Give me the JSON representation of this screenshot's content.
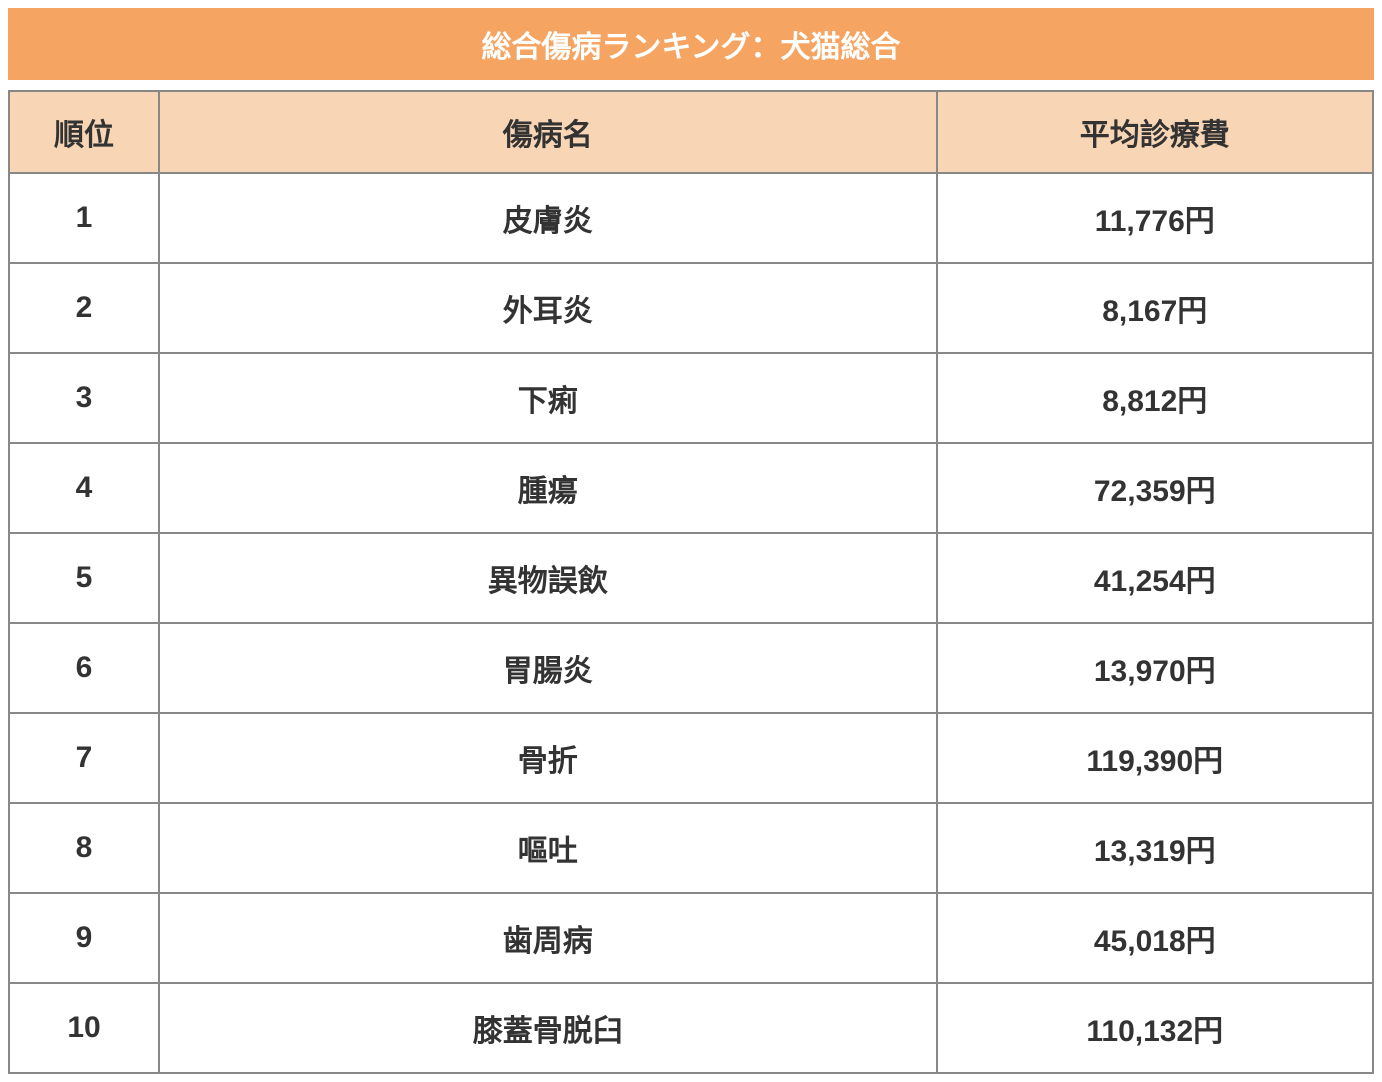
{
  "title": "総合傷病ランキング：犬猫総合",
  "title_bar": {
    "background_color": "#f5a462",
    "text_color": "#ffffff",
    "fontsize": 30
  },
  "table": {
    "type": "table",
    "header_background_color": "#f8d5b5",
    "header_text_color": "#333333",
    "border_color": "#888888",
    "row_background_color": "#ffffff",
    "cell_text_color": "#333333",
    "fontsize": 30,
    "columns": [
      {
        "key": "rank",
        "label": "順位",
        "width_pct": 11
      },
      {
        "key": "name",
        "label": "傷病名",
        "width_pct": 57
      },
      {
        "key": "cost",
        "label": "平均診療費",
        "width_pct": 32
      }
    ],
    "rows": [
      {
        "rank": "1",
        "name": "皮膚炎",
        "cost": "11,776円"
      },
      {
        "rank": "2",
        "name": "外耳炎",
        "cost": "8,167円"
      },
      {
        "rank": "3",
        "name": "下痢",
        "cost": "8,812円"
      },
      {
        "rank": "4",
        "name": "腫瘍",
        "cost": "72,359円"
      },
      {
        "rank": "5",
        "name": "異物誤飲",
        "cost": "41,254円"
      },
      {
        "rank": "6",
        "name": "胃腸炎",
        "cost": "13,970円"
      },
      {
        "rank": "7",
        "name": "骨折",
        "cost": "119,390円"
      },
      {
        "rank": "8",
        "name": "嘔吐",
        "cost": "13,319円"
      },
      {
        "rank": "9",
        "name": "歯周病",
        "cost": "45,018円"
      },
      {
        "rank": "10",
        "name": "膝蓋骨脱臼",
        "cost": "110,132円"
      }
    ]
  }
}
